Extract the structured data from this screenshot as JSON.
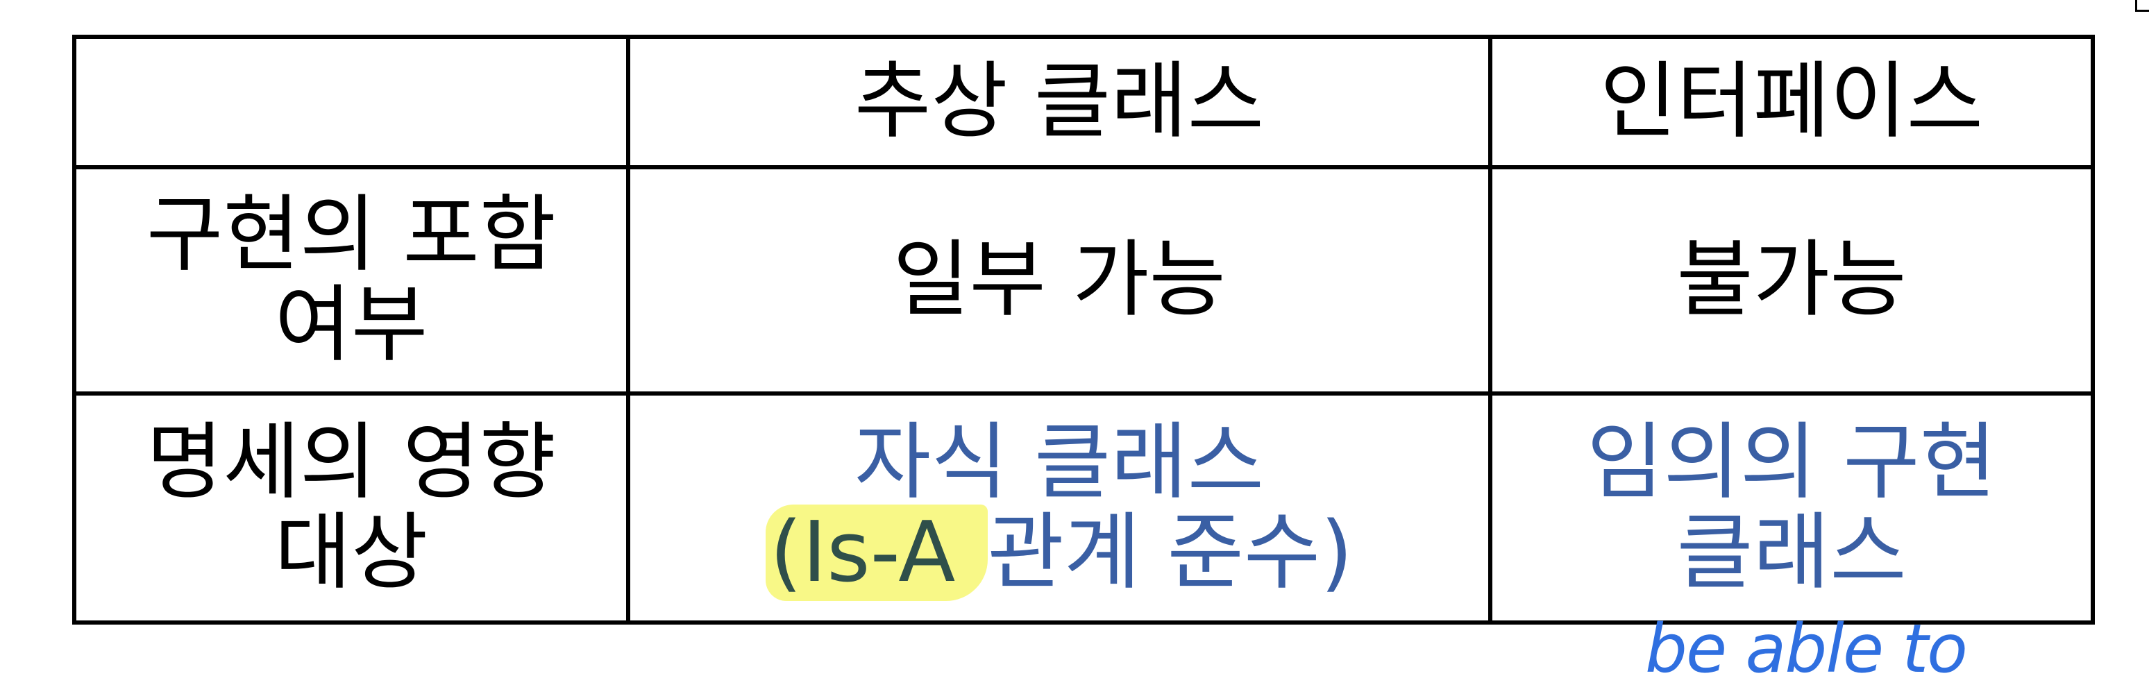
{
  "table": {
    "header": {
      "empty": "",
      "abstract_class": "추상 클래스",
      "interface": "인터페이스"
    },
    "rows": [
      {
        "label_line1": "구현의 포함",
        "label_line2": "여부",
        "abstract_class": "일부 가능",
        "interface": "불가능"
      },
      {
        "label_line1": "명세의 영향",
        "label_line2": "대상",
        "abstract_class_line1": "자식 클래스",
        "abstract_class_line2_open": "(",
        "abstract_class_line2_highlight": "Is-A ",
        "abstract_class_line2_rest": "관계 준수)",
        "interface_line1": "임의의 구현",
        "interface_line2": "클래스"
      }
    ]
  },
  "annotation": {
    "handwritten_note": "be able to"
  },
  "colors": {
    "text": "#000000",
    "emphasis_blue": "#3a5fa4",
    "highlight_yellow": "#f5f55f",
    "handwriting_blue": "#2f6fe0"
  }
}
